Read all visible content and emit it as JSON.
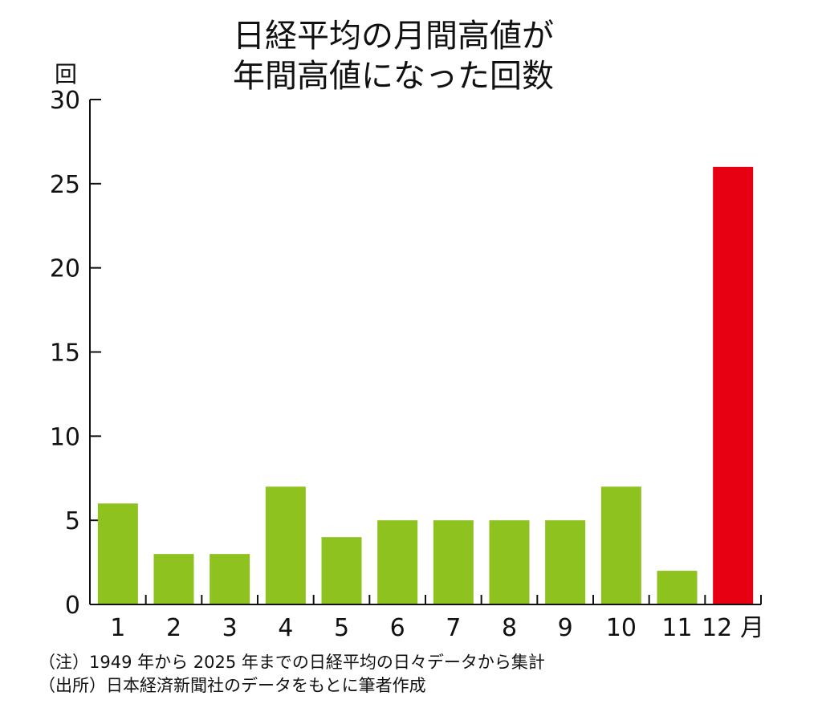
{
  "chart_data": {
    "type": "bar",
    "title_lines": [
      "日経平均の月間高値が",
      "年間高値になった回数"
    ],
    "ylabel": "回",
    "x_unit": "月",
    "categories": [
      "1",
      "2",
      "3",
      "4",
      "5",
      "6",
      "7",
      "8",
      "9",
      "10",
      "11",
      "12"
    ],
    "values": [
      6,
      3,
      3,
      7,
      4,
      5,
      5,
      5,
      5,
      7,
      2,
      26
    ],
    "ylim": [
      0,
      30
    ],
    "yticks": [
      0,
      5,
      10,
      15,
      20,
      25,
      30
    ],
    "grid": false,
    "colors": {
      "default": "#8dc21f",
      "highlight": "#e60012",
      "axis": "#111111"
    },
    "highlight_index": 11,
    "notes": [
      "（注）1949 年から 2025 年までの日経平均の日々データから集計",
      "（出所）日本経済新聞社のデータをもとに筆者作成"
    ]
  }
}
